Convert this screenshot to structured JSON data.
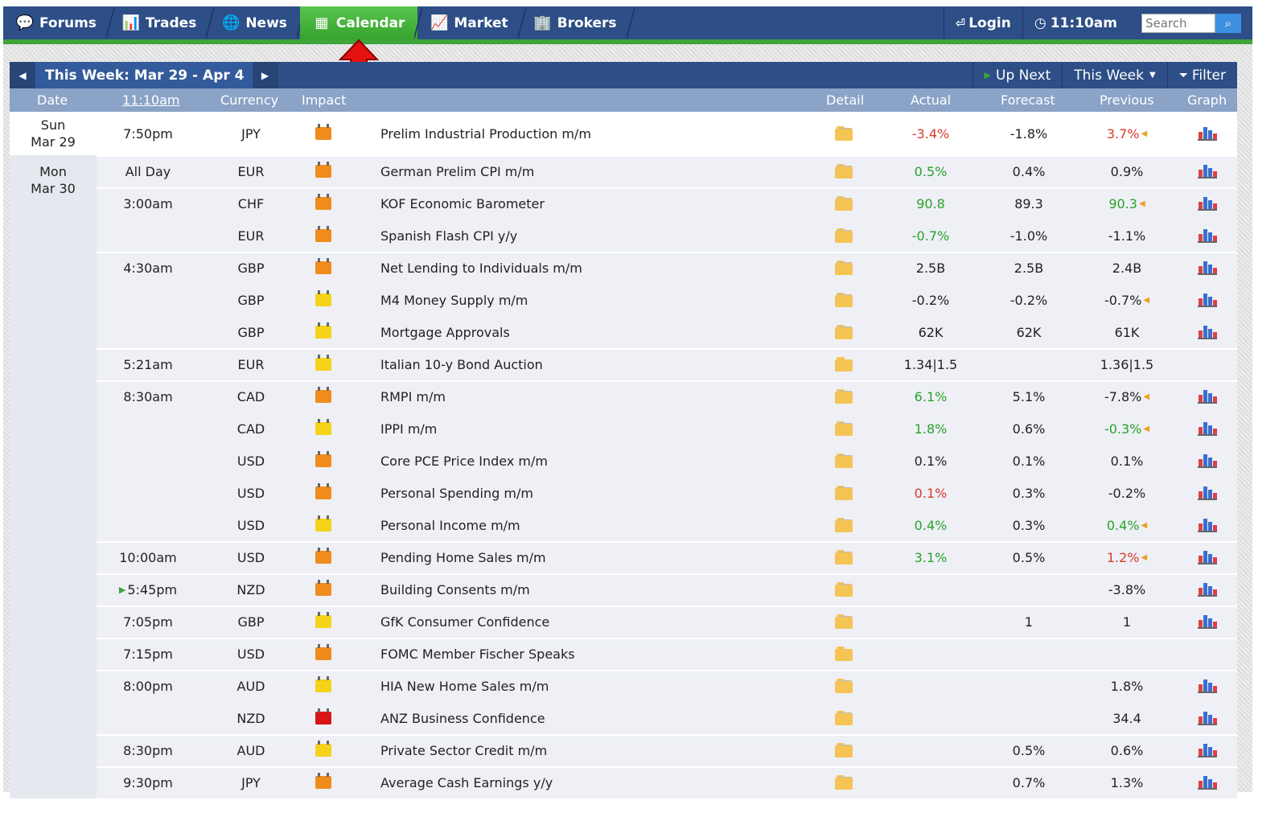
{
  "nav": {
    "tabs": [
      {
        "label": "Forums",
        "icon": "speech-bubbles-icon",
        "glyph": "💬",
        "active": false
      },
      {
        "label": "Trades",
        "icon": "bar-chart-icon",
        "glyph": "📊",
        "active": false
      },
      {
        "label": "News",
        "icon": "globe-icon",
        "glyph": "🌐",
        "active": false
      },
      {
        "label": "Calendar",
        "icon": "calendar-icon",
        "glyph": "▦",
        "active": true
      },
      {
        "label": "Market",
        "icon": "market-chart-icon",
        "glyph": "📈",
        "active": false
      },
      {
        "label": "Brokers",
        "icon": "brokers-icon",
        "glyph": "🏢",
        "active": false
      }
    ],
    "login_label": "Login",
    "time_label": "11:10am",
    "search_placeholder": "Search"
  },
  "week_bar": {
    "label": "This Week: Mar 29 - Apr 4",
    "up_next": "Up Next",
    "this_week": "This Week",
    "filter": "Filter"
  },
  "columns": {
    "date": "Date",
    "time": "11:10am",
    "currency": "Currency",
    "impact": "Impact",
    "detail": "Detail",
    "actual": "Actual",
    "forecast": "Forecast",
    "previous": "Previous",
    "graph": "Graph"
  },
  "colors": {
    "nav_bg": "#2d4e86",
    "active_tab": "#3fa43a",
    "better": "#2aa12a",
    "worse": "#d83a2a",
    "high": "#d81414",
    "medium": "#f08c1c",
    "low": "#f4d31a"
  },
  "events": [
    {
      "day": "Sun",
      "date": "Mar 29",
      "time": "7:50pm",
      "currency": "JPY",
      "impact": "medium",
      "event": "Prelim Industrial Production m/m",
      "actual": "-3.4%",
      "actual_tone": "worse",
      "forecast": "-1.8%",
      "previous": "3.7%",
      "previous_tone": "worse",
      "revised": true,
      "graph": true
    },
    {
      "day": "Mon",
      "date": "Mar 30",
      "time": "All Day",
      "currency": "EUR",
      "impact": "medium",
      "event": "German Prelim CPI m/m",
      "actual": "0.5%",
      "actual_tone": "better",
      "forecast": "0.4%",
      "previous": "0.9%",
      "previous_tone": "",
      "revised": false,
      "graph": true
    },
    {
      "time": "3:00am",
      "currency": "CHF",
      "impact": "medium",
      "event": "KOF Economic Barometer",
      "actual": "90.8",
      "actual_tone": "better",
      "forecast": "89.3",
      "previous": "90.3",
      "previous_tone": "better",
      "revised": true,
      "graph": true
    },
    {
      "time": "",
      "currency": "EUR",
      "impact": "medium",
      "event": "Spanish Flash CPI y/y",
      "actual": "-0.7%",
      "actual_tone": "better",
      "forecast": "-1.0%",
      "previous": "-1.1%",
      "previous_tone": "",
      "revised": false,
      "graph": true
    },
    {
      "time": "4:30am",
      "currency": "GBP",
      "impact": "medium",
      "event": "Net Lending to Individuals m/m",
      "actual": "2.5B",
      "actual_tone": "",
      "forecast": "2.5B",
      "previous": "2.4B",
      "previous_tone": "",
      "revised": false,
      "graph": true
    },
    {
      "time": "",
      "currency": "GBP",
      "impact": "low",
      "event": "M4 Money Supply m/m",
      "actual": "-0.2%",
      "actual_tone": "",
      "forecast": "-0.2%",
      "previous": "-0.7%",
      "previous_tone": "",
      "revised": true,
      "graph": true
    },
    {
      "time": "",
      "currency": "GBP",
      "impact": "low",
      "event": "Mortgage Approvals",
      "actual": "62K",
      "actual_tone": "",
      "forecast": "62K",
      "previous": "61K",
      "previous_tone": "",
      "revised": false,
      "graph": true
    },
    {
      "time": "5:21am",
      "currency": "EUR",
      "impact": "low",
      "event": "Italian 10-y Bond Auction",
      "actual": "1.34|1.5",
      "actual_tone": "",
      "forecast": "",
      "previous": "1.36|1.5",
      "previous_tone": "",
      "revised": false,
      "graph": false
    },
    {
      "time": "8:30am",
      "currency": "CAD",
      "impact": "medium",
      "event": "RMPI m/m",
      "actual": "6.1%",
      "actual_tone": "better",
      "forecast": "5.1%",
      "previous": "-7.8%",
      "previous_tone": "",
      "revised": true,
      "graph": true
    },
    {
      "time": "",
      "currency": "CAD",
      "impact": "low",
      "event": "IPPI m/m",
      "actual": "1.8%",
      "actual_tone": "better",
      "forecast": "0.6%",
      "previous": "-0.3%",
      "previous_tone": "better",
      "revised": true,
      "graph": true
    },
    {
      "time": "",
      "currency": "USD",
      "impact": "medium",
      "event": "Core PCE Price Index m/m",
      "actual": "0.1%",
      "actual_tone": "",
      "forecast": "0.1%",
      "previous": "0.1%",
      "previous_tone": "",
      "revised": false,
      "graph": true
    },
    {
      "time": "",
      "currency": "USD",
      "impact": "medium",
      "event": "Personal Spending m/m",
      "actual": "0.1%",
      "actual_tone": "worse",
      "forecast": "0.3%",
      "previous": "-0.2%",
      "previous_tone": "",
      "revised": false,
      "graph": true
    },
    {
      "time": "",
      "currency": "USD",
      "impact": "low",
      "event": "Personal Income m/m",
      "actual": "0.4%",
      "actual_tone": "better",
      "forecast": "0.3%",
      "previous": "0.4%",
      "previous_tone": "better",
      "revised": true,
      "graph": true
    },
    {
      "time": "10:00am",
      "currency": "USD",
      "impact": "medium",
      "event": "Pending Home Sales m/m",
      "actual": "3.1%",
      "actual_tone": "better",
      "forecast": "0.5%",
      "previous": "1.2%",
      "previous_tone": "worse",
      "revised": true,
      "graph": true
    },
    {
      "time": "5:45pm",
      "up_next": true,
      "currency": "NZD",
      "impact": "medium",
      "event": "Building Consents m/m",
      "actual": "",
      "actual_tone": "",
      "forecast": "",
      "previous": "-3.8%",
      "previous_tone": "",
      "revised": false,
      "graph": true
    },
    {
      "time": "7:05pm",
      "currency": "GBP",
      "impact": "low",
      "event": "GfK Consumer Confidence",
      "actual": "",
      "actual_tone": "",
      "forecast": "1",
      "previous": "1",
      "previous_tone": "",
      "revised": false,
      "graph": true
    },
    {
      "time": "7:15pm",
      "currency": "USD",
      "impact": "medium",
      "event": "FOMC Member Fischer Speaks",
      "actual": "",
      "actual_tone": "",
      "forecast": "",
      "previous": "",
      "previous_tone": "",
      "revised": false,
      "graph": false
    },
    {
      "time": "8:00pm",
      "currency": "AUD",
      "impact": "low",
      "event": "HIA New Home Sales m/m",
      "actual": "",
      "actual_tone": "",
      "forecast": "",
      "previous": "1.8%",
      "previous_tone": "",
      "revised": false,
      "graph": true
    },
    {
      "time": "",
      "currency": "NZD",
      "impact": "high",
      "event": "ANZ Business Confidence",
      "actual": "",
      "actual_tone": "",
      "forecast": "",
      "previous": "34.4",
      "previous_tone": "",
      "revised": false,
      "graph": true
    },
    {
      "time": "8:30pm",
      "currency": "AUD",
      "impact": "low",
      "event": "Private Sector Credit m/m",
      "actual": "",
      "actual_tone": "",
      "forecast": "0.5%",
      "previous": "0.6%",
      "previous_tone": "",
      "revised": false,
      "graph": true
    },
    {
      "time": "9:30pm",
      "currency": "JPY",
      "impact": "medium",
      "event": "Average Cash Earnings y/y",
      "actual": "",
      "actual_tone": "",
      "forecast": "0.7%",
      "previous": "1.3%",
      "previous_tone": "",
      "revised": false,
      "graph": true
    }
  ]
}
